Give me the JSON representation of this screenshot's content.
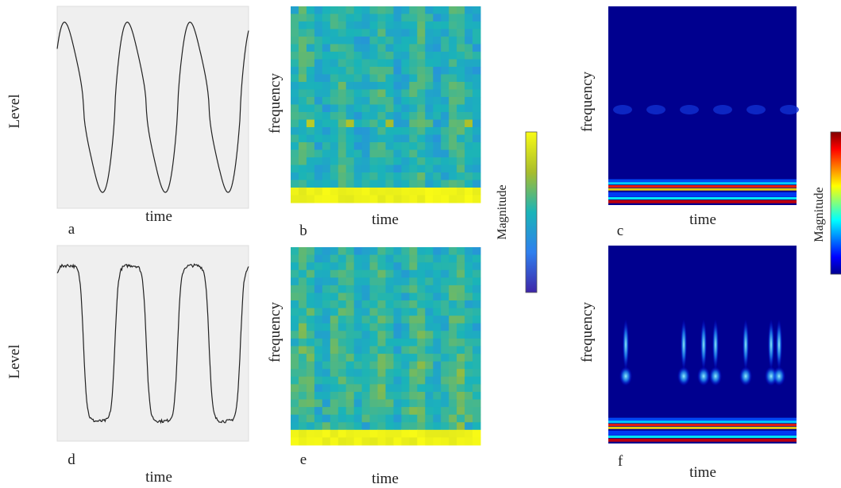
{
  "panels": [
    {
      "label": "a",
      "x_label": "time",
      "y_label": "Level"
    },
    {
      "label": "b",
      "x_label": "time",
      "y_label": "frequency"
    },
    {
      "label": "c",
      "x_label": "time",
      "y_label": "frequency"
    },
    {
      "label": "d",
      "x_label": "time",
      "y_label": "Level"
    },
    {
      "label": "e",
      "x_label": "time",
      "y_label": "frequency"
    },
    {
      "label": "f",
      "x_label": "time",
      "y_label": "frequency"
    }
  ],
  "colorbars": [
    {
      "label": "Magnitude"
    },
    {
      "label": "Magnitude"
    }
  ]
}
